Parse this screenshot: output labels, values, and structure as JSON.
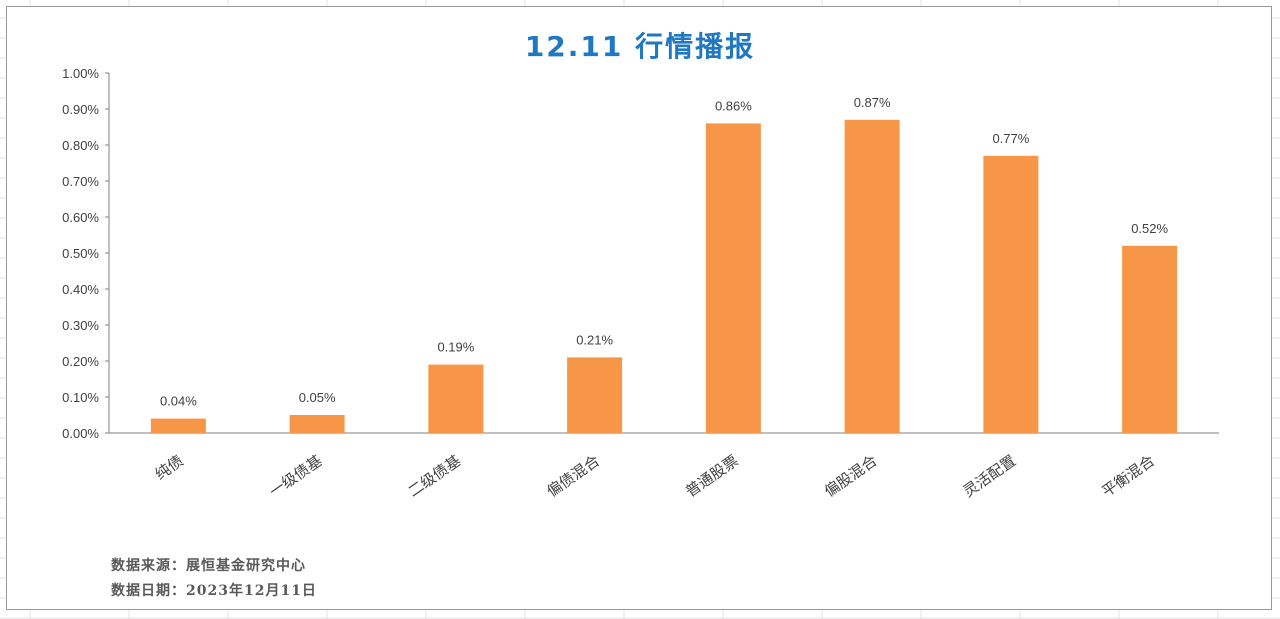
{
  "chart_data": {
    "type": "bar",
    "title": "12.11 行情播报",
    "categories": [
      "纯债",
      "一级债基",
      "二级债基",
      "偏债混合",
      "普通股票",
      "偏股混合",
      "灵活配置",
      "平衡混合"
    ],
    "values": [
      0.04,
      0.05,
      0.19,
      0.21,
      0.86,
      0.87,
      0.77,
      0.52
    ],
    "data_labels": [
      "0.04%",
      "0.05%",
      "0.19%",
      "0.21%",
      "0.86%",
      "0.87%",
      "0.77%",
      "0.52%"
    ],
    "ylim": [
      0,
      1.0
    ],
    "yticks": [
      0,
      0.1,
      0.2,
      0.3,
      0.4,
      0.5,
      0.6,
      0.7,
      0.8,
      0.9,
      1.0
    ],
    "ytick_labels": [
      "0.00%",
      "0.10%",
      "0.20%",
      "0.30%",
      "0.40%",
      "0.50%",
      "0.60%",
      "0.70%",
      "0.80%",
      "0.90%",
      "1.00%"
    ],
    "xlabel": "",
    "ylabel": "",
    "grid": false,
    "bar_color": "#f79646"
  },
  "colors": {
    "title": "#1f78c1",
    "axis": "#7f7f7f",
    "text": "#404040",
    "note": "#595959",
    "sheet_grid": "#e3e3e3"
  },
  "notes": {
    "source": "数据来源：展恒基金研究中心",
    "date": "数据日期：2023年12月11日"
  }
}
